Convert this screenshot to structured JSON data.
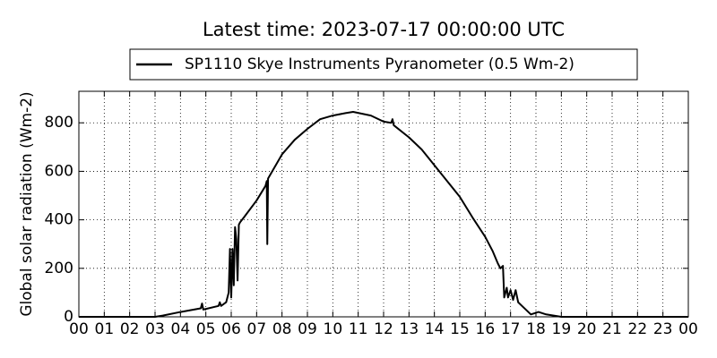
{
  "chart_data": {
    "type": "line",
    "title": "Latest time: 2023-07-17 00:00:00 UTC",
    "y_label": "Global solar radiation (Wm-2)",
    "legend_position": "top-center",
    "grid": true,
    "x": [
      0,
      3,
      3.3,
      4,
      4.8,
      4.85,
      4.9,
      5.5,
      5.55,
      5.6,
      5.8,
      5.9,
      5.95,
      6.0,
      6.05,
      6.1,
      6.15,
      6.2,
      6.25,
      6.3,
      6.35,
      6.5,
      7.0,
      7.35,
      7.4,
      7.42,
      7.45,
      8,
      8.5,
      9,
      9.5,
      10,
      10.5,
      10.8,
      11.5,
      12,
      12.3,
      12.35,
      12.4,
      13,
      13.5,
      14,
      14.5,
      15,
      15.5,
      16,
      16.3,
      16.5,
      16.6,
      16.7,
      16.75,
      16.85,
      16.9,
      17,
      17.1,
      17.2,
      17.3,
      17.5,
      17.8,
      18.1,
      18.4,
      19,
      24
    ],
    "series": [
      {
        "name": "SP1110 Skye Instruments Pyranometer (0.5 Wm-2)",
        "color": "#000000",
        "values": [
          0,
          0,
          5,
          20,
          35,
          55,
          30,
          45,
          60,
          45,
          60,
          100,
          280,
          80,
          280,
          130,
          370,
          320,
          150,
          380,
          390,
          410,
          480,
          540,
          560,
          300,
          570,
          670,
          730,
          775,
          815,
          830,
          840,
          845,
          830,
          805,
          800,
          815,
          790,
          740,
          690,
          625,
          560,
          495,
          410,
          330,
          270,
          220,
          200,
          210,
          80,
          120,
          80,
          110,
          70,
          110,
          60,
          40,
          10,
          20,
          10,
          0,
          0
        ]
      }
    ],
    "xlim": [
      0,
      24
    ],
    "xticks": [
      {
        "value": 0,
        "label": "00"
      },
      {
        "value": 1,
        "label": "01"
      },
      {
        "value": 2,
        "label": "02"
      },
      {
        "value": 3,
        "label": "03"
      },
      {
        "value": 4,
        "label": "04"
      },
      {
        "value": 5,
        "label": "05"
      },
      {
        "value": 6,
        "label": "06"
      },
      {
        "value": 7,
        "label": "07"
      },
      {
        "value": 8,
        "label": "08"
      },
      {
        "value": 9,
        "label": "09"
      },
      {
        "value": 10,
        "label": "10"
      },
      {
        "value": 11,
        "label": "11"
      },
      {
        "value": 12,
        "label": "12"
      },
      {
        "value": 13,
        "label": "13"
      },
      {
        "value": 14,
        "label": "14"
      },
      {
        "value": 15,
        "label": "15"
      },
      {
        "value": 16,
        "label": "16"
      },
      {
        "value": 17,
        "label": "17"
      },
      {
        "value": 18,
        "label": "18"
      },
      {
        "value": 19,
        "label": "19"
      },
      {
        "value": 20,
        "label": "20"
      },
      {
        "value": 21,
        "label": "21"
      },
      {
        "value": 22,
        "label": "22"
      },
      {
        "value": 23,
        "label": "23"
      },
      {
        "value": 24,
        "label": "00"
      }
    ],
    "ylim": [
      0,
      930
    ],
    "yticks": [
      0,
      200,
      400,
      600,
      800
    ]
  }
}
